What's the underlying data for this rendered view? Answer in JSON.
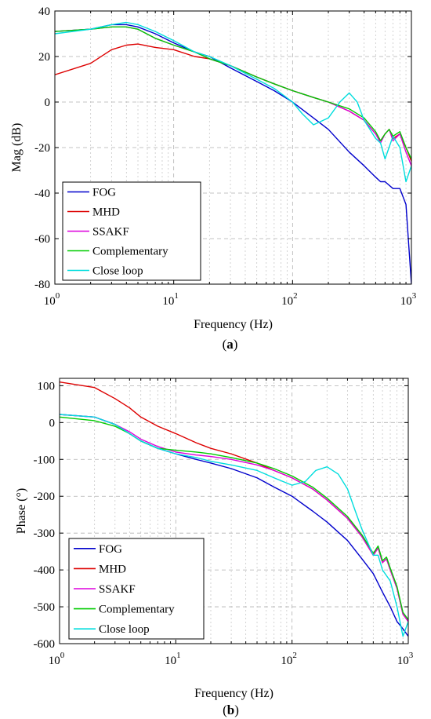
{
  "chart_data": [
    {
      "panel": "a",
      "caption": {
        "open": "(",
        "letter": "a",
        "close": ")"
      },
      "type": "line",
      "xlabel": "Frequency (Hz)",
      "ylabel": "Mag (dB)",
      "xscale": "log",
      "xlim": [
        1,
        1000
      ],
      "ylim": [
        -80,
        40
      ],
      "grid": true,
      "legend_position": "bottom-left",
      "x_ticks": [
        1,
        10,
        100,
        1000
      ],
      "x_tick_labels": [
        {
          "base": "10",
          "exp": "0"
        },
        {
          "base": "10",
          "exp": "1"
        },
        {
          "base": "10",
          "exp": "2"
        },
        {
          "base": "10",
          "exp": "3"
        }
      ],
      "y_ticks": [
        40,
        20,
        0,
        -20,
        -40,
        -60,
        -80
      ],
      "y_tick_labels": [
        "40",
        "20",
        "0",
        "-20",
        "-40",
        "-60",
        "-80"
      ],
      "series": [
        {
          "name": "FOG",
          "color": "#0000cc",
          "x": [
            1,
            2,
            3,
            4,
            5,
            7,
            10,
            15,
            20,
            30,
            50,
            70,
            100,
            150,
            200,
            300,
            400,
            500,
            550,
            600,
            700,
            800,
            900,
            1000
          ],
          "y": [
            31,
            32,
            34,
            34,
            33,
            30,
            26,
            22,
            20,
            15,
            9,
            5,
            0,
            -7,
            -12,
            -22,
            -28,
            -33,
            -35,
            -35,
            -38,
            -38,
            -45,
            -80
          ]
        },
        {
          "name": "MHD",
          "color": "#dd0000",
          "x": [
            1,
            2,
            3,
            4,
            5,
            7,
            10,
            15,
            20,
            30,
            50,
            70,
            100,
            150,
            200,
            300,
            400,
            500,
            550,
            600,
            650,
            700,
            800,
            900,
            1000
          ],
          "y": [
            12,
            17,
            23,
            25,
            25.5,
            24,
            23,
            20,
            19,
            16,
            11,
            8,
            5,
            2,
            0,
            -4,
            -8,
            -14,
            -17,
            -14,
            -12,
            -16,
            -14,
            -20,
            -26
          ]
        },
        {
          "name": "SSAKF",
          "color": "#dd00dd",
          "x": [
            1,
            2,
            3,
            4,
            5,
            7,
            10,
            15,
            20,
            30,
            50,
            70,
            100,
            150,
            200,
            300,
            400,
            500,
            550,
            600,
            650,
            700,
            800,
            900,
            1000
          ],
          "y": [
            31,
            32,
            33,
            33,
            32,
            28,
            25,
            22,
            19,
            16,
            11,
            8,
            5,
            2,
            0,
            -4,
            -8,
            -14,
            -18,
            -14,
            -12,
            -17,
            -14,
            -22,
            -28
          ]
        },
        {
          "name": "Complementary",
          "color": "#00cc00",
          "x": [
            1,
            2,
            3,
            4,
            5,
            7,
            10,
            15,
            20,
            30,
            50,
            70,
            100,
            150,
            200,
            300,
            400,
            500,
            550,
            600,
            650,
            700,
            800,
            900,
            1000
          ],
          "y": [
            31,
            32,
            33,
            33,
            32,
            28,
            25,
            22,
            19,
            16,
            11,
            8,
            5,
            2,
            0,
            -3,
            -7,
            -13,
            -17,
            -14,
            -12,
            -15,
            -13,
            -20,
            -25
          ]
        },
        {
          "name": "Close loop",
          "color": "#00dddd",
          "x": [
            1,
            2,
            3,
            4,
            5,
            7,
            10,
            15,
            20,
            30,
            50,
            70,
            100,
            120,
            150,
            200,
            250,
            300,
            350,
            400,
            500,
            550,
            600,
            700,
            800,
            900,
            1000
          ],
          "y": [
            30,
            32,
            34,
            35,
            34,
            31,
            27,
            22,
            20,
            16,
            10,
            6,
            0,
            -5,
            -10,
            -7,
            0,
            4,
            0,
            -8,
            -16,
            -18,
            -25,
            -15,
            -20,
            -35,
            -28
          ]
        }
      ]
    },
    {
      "panel": "b",
      "caption": {
        "open": "(",
        "letter": "b",
        "close": ")"
      },
      "type": "line",
      "xlabel": "Frequency (Hz)",
      "ylabel": "Phase (°)",
      "xscale": "log",
      "xlim": [
        1,
        1000
      ],
      "ylim": [
        -600,
        120
      ],
      "grid": true,
      "legend_position": "bottom-left",
      "x_ticks": [
        1,
        10,
        100,
        1000
      ],
      "x_tick_labels": [
        {
          "base": "10",
          "exp": "0"
        },
        {
          "base": "10",
          "exp": "1"
        },
        {
          "base": "10",
          "exp": "2"
        },
        {
          "base": "10",
          "exp": "3"
        }
      ],
      "y_ticks": [
        100,
        0,
        -100,
        -200,
        -300,
        -400,
        -500,
        -600
      ],
      "y_tick_labels": [
        "100",
        "0",
        "-100",
        "-200",
        "-300",
        "-400",
        "-500",
        "-600"
      ],
      "series": [
        {
          "name": "FOG",
          "color": "#0000cc",
          "x": [
            1,
            2,
            3,
            4,
            5,
            7,
            10,
            15,
            20,
            30,
            50,
            70,
            100,
            150,
            200,
            300,
            400,
            500,
            600,
            700,
            800,
            900,
            1000
          ],
          "y": [
            22,
            15,
            -5,
            -30,
            -50,
            -70,
            -85,
            -100,
            -110,
            -125,
            -150,
            -175,
            -200,
            -240,
            -270,
            -320,
            -370,
            -410,
            -460,
            -500,
            -540,
            -560,
            -580
          ]
        },
        {
          "name": "MHD",
          "color": "#dd0000",
          "x": [
            1,
            2,
            3,
            4,
            5,
            7,
            10,
            15,
            20,
            30,
            50,
            70,
            100,
            150,
            200,
            300,
            400,
            500,
            550,
            600,
            650,
            700,
            800,
            900,
            1000
          ],
          "y": [
            110,
            95,
            65,
            40,
            15,
            -10,
            -30,
            -55,
            -70,
            -85,
            -110,
            -130,
            -150,
            -180,
            -210,
            -260,
            -310,
            -360,
            -340,
            -380,
            -370,
            -400,
            -450,
            -520,
            -540
          ]
        },
        {
          "name": "SSAKF",
          "color": "#dd00dd",
          "x": [
            1,
            2,
            3,
            4,
            5,
            7,
            10,
            15,
            20,
            30,
            50,
            70,
            100,
            150,
            200,
            300,
            400,
            500,
            550,
            600,
            650,
            700,
            800,
            900,
            1000
          ],
          "y": [
            22,
            15,
            -5,
            -25,
            -45,
            -65,
            -80,
            -88,
            -92,
            -100,
            -115,
            -130,
            -150,
            -180,
            -210,
            -260,
            -310,
            -360,
            -340,
            -380,
            -370,
            -400,
            -450,
            -520,
            -540
          ]
        },
        {
          "name": "Complementary",
          "color": "#00cc00",
          "x": [
            1,
            2,
            3,
            4,
            5,
            7,
            10,
            15,
            20,
            30,
            50,
            70,
            100,
            150,
            200,
            300,
            400,
            500,
            550,
            600,
            650,
            700,
            800,
            900,
            1000
          ],
          "y": [
            15,
            5,
            -10,
            -30,
            -50,
            -70,
            -75,
            -80,
            -85,
            -95,
            -110,
            -125,
            -145,
            -175,
            -205,
            -255,
            -305,
            -355,
            -335,
            -375,
            -365,
            -395,
            -445,
            -515,
            -535
          ]
        },
        {
          "name": "Close loop",
          "color": "#00dddd",
          "x": [
            1,
            2,
            3,
            4,
            5,
            7,
            10,
            15,
            20,
            30,
            50,
            70,
            100,
            130,
            160,
            200,
            250,
            300,
            350,
            400,
            500,
            550,
            600,
            700,
            800,
            900,
            1000
          ],
          "y": [
            22,
            15,
            -5,
            -30,
            -50,
            -70,
            -85,
            -95,
            -105,
            -115,
            -130,
            -150,
            -170,
            -160,
            -130,
            -120,
            -140,
            -180,
            -240,
            -290,
            -360,
            -360,
            -400,
            -430,
            -500,
            -580,
            -540
          ]
        }
      ]
    }
  ]
}
